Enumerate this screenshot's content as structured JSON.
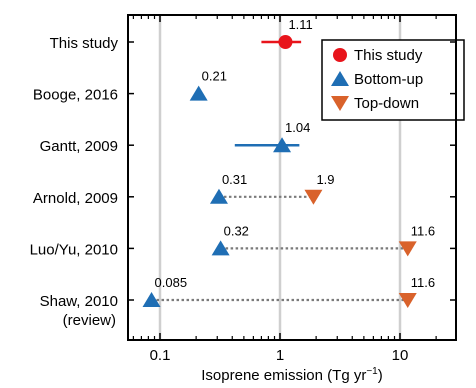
{
  "chart_data": {
    "type": "scatter",
    "xlabel": "Isoprene emission (Tg yr",
    "xlabel_superscript": "−1",
    "xlabel_close": ")",
    "xscale": "log",
    "xlim": [
      0.05,
      35
    ],
    "xticks": [
      {
        "value": 0.1,
        "label": "0.1"
      },
      {
        "value": 1,
        "label": "1"
      },
      {
        "value": 10,
        "label": "10"
      }
    ],
    "grid": "vertical at major ticks",
    "legend_placement": "top-right",
    "categories": [
      {
        "line1": "This study",
        "line2": ""
      },
      {
        "line1": "Booge, 2016",
        "line2": ""
      },
      {
        "line1": "Gantt, 2009",
        "line2": ""
      },
      {
        "line1": "Arnold, 2009",
        "line2": ""
      },
      {
        "line1": "Luo/Yu, 2010",
        "line2": ""
      },
      {
        "line1": "Shaw, 2010",
        "line2": "(review)"
      }
    ],
    "series": [
      {
        "name": "This study",
        "marker": "circle",
        "color": "#e8141b",
        "points": [
          {
            "category": 0,
            "x": 1.11,
            "label": "1.11",
            "xerr_low": 0.7,
            "xerr_high": 1.5
          }
        ]
      },
      {
        "name": "Bottom-up",
        "marker": "triangle-up",
        "color": "#1f6eb4",
        "points": [
          {
            "category": 1,
            "x": 0.21,
            "label": "0.21"
          },
          {
            "category": 2,
            "x": 1.04,
            "label": "1.04",
            "xerr_low": 0.42,
            "xerr_high": 1.45
          },
          {
            "category": 3,
            "x": 0.31,
            "label": "0.31"
          },
          {
            "category": 4,
            "x": 0.32,
            "label": "0.32"
          },
          {
            "category": 5,
            "x": 0.085,
            "label": "0.085"
          }
        ]
      },
      {
        "name": "Top-down",
        "marker": "triangle-down",
        "color": "#d9622b",
        "points": [
          {
            "category": 3,
            "x": 1.9,
            "label": "1.9"
          },
          {
            "category": 4,
            "x": 11.6,
            "label": "11.6"
          },
          {
            "category": 5,
            "x": 11.6,
            "label": "11.6"
          }
        ]
      }
    ],
    "connectors": [
      {
        "category": 3,
        "from": 0.31,
        "to": 1.9
      },
      {
        "category": 4,
        "from": 0.32,
        "to": 11.6
      },
      {
        "category": 5,
        "from": 0.085,
        "to": 11.6
      }
    ]
  }
}
